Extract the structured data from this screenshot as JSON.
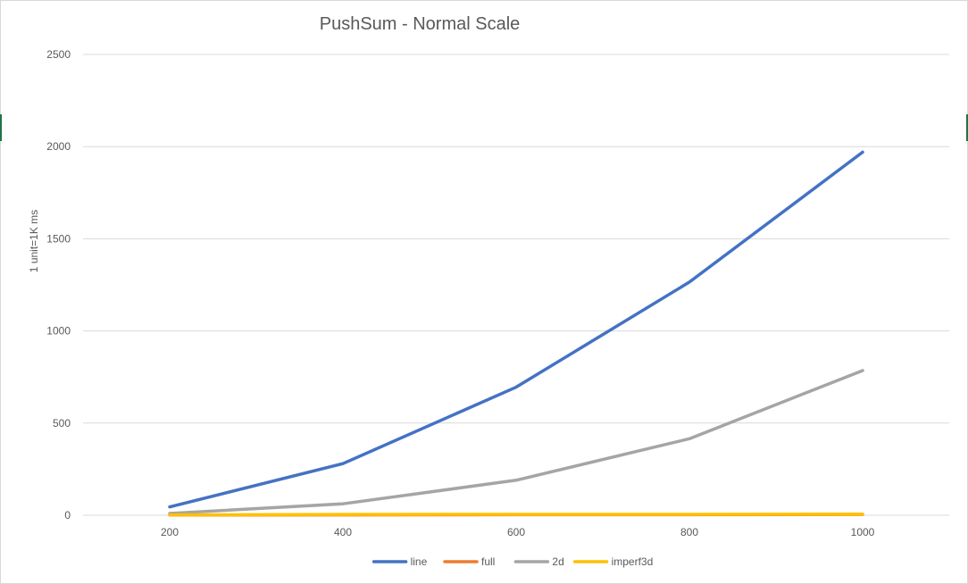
{
  "chart_data": {
    "type": "line",
    "title": "PushSum - Normal Scale",
    "xlabel": "",
    "ylabel": "1 unit=1K ms",
    "categories": [
      200,
      400,
      600,
      800,
      1000
    ],
    "ylim": [
      0,
      2500
    ],
    "yticks": [
      0,
      500,
      1000,
      1500,
      2000,
      2500
    ],
    "grid": true,
    "legend_position": "bottom",
    "series": [
      {
        "name": "line",
        "color": "#4472C4",
        "values": [
          45,
          280,
          695,
          1265,
          1970
        ]
      },
      {
        "name": "full",
        "color": "#ED7D31",
        "values": [
          1,
          2,
          3,
          3,
          4
        ]
      },
      {
        "name": "2d",
        "color": "#A5A5A5",
        "values": [
          10,
          62,
          190,
          415,
          785
        ]
      },
      {
        "name": "imperf3d",
        "color": "#FFC000",
        "values": [
          2,
          4,
          5,
          5,
          6
        ]
      }
    ]
  }
}
